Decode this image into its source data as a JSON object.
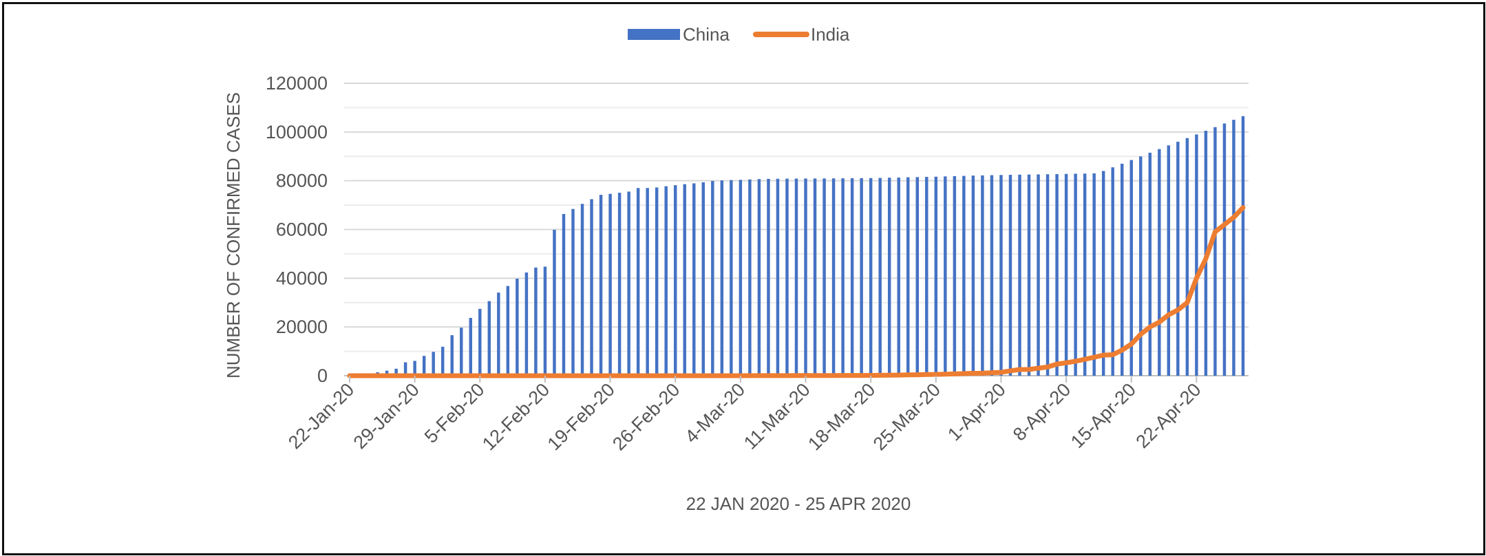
{
  "chart_data": {
    "type": "bar+line",
    "xlabel": "22 JAN 2020 - 25 APR 2020",
    "ylabel": "NUMBER OF CONFIRMED CASES",
    "ylim": [
      0,
      120000
    ],
    "yticks": [
      0,
      20000,
      40000,
      60000,
      80000,
      100000,
      120000
    ],
    "xticks": [
      "22-Jan-20",
      "29-Jan-20",
      "5-Feb-20",
      "12-Feb-20",
      "19-Feb-20",
      "26-Feb-20",
      "4-Mar-20",
      "11-Mar-20",
      "18-Mar-20",
      "25-Mar-20",
      "1-Apr-20",
      "8-Apr-20",
      "15-Apr-20",
      "22-Apr-20"
    ],
    "grid": "horizontal",
    "legend_position": "top-center",
    "x_start": "2020-01-22",
    "x_end": "2020-04-25",
    "series": [
      {
        "name": "China",
        "type": "bar",
        "color": "#4472C4",
        "values": [
          548,
          643,
          920,
          1406,
          2075,
          2877,
          5509,
          6087,
          8141,
          9802,
          11891,
          16630,
          19716,
          23707,
          27440,
          30587,
          34110,
          36814,
          39829,
          42354,
          44386,
          44759,
          59895,
          66358,
          68413,
          70513,
          72434,
          74211,
          74619,
          75077,
          75550,
          77001,
          77022,
          77241,
          77754,
          78166,
          78600,
          78928,
          79356,
          79932,
          80136,
          80261,
          80386,
          80537,
          80690,
          80770,
          80823,
          80860,
          80887,
          80921,
          80932,
          80945,
          80977,
          81003,
          81033,
          81058,
          81102,
          81156,
          81250,
          81305,
          81435,
          81498,
          81591,
          81661,
          81782,
          81897,
          81999,
          82122,
          82198,
          82279,
          82361,
          82432,
          82511,
          82543,
          82602,
          82665,
          82718,
          82809,
          82883,
          82941,
          83014,
          84000,
          85500,
          87000,
          88500,
          90000,
          91500,
          93000,
          94500,
          96000,
          97500,
          99000,
          100500,
          102000,
          103500,
          105000,
          106500
        ]
      },
      {
        "name": "India",
        "type": "line",
        "color": "#ED7D31",
        "values": [
          0,
          0,
          0,
          0,
          0,
          0,
          0,
          0,
          1,
          1,
          1,
          2,
          3,
          3,
          3,
          3,
          3,
          3,
          3,
          3,
          3,
          3,
          3,
          3,
          3,
          3,
          3,
          3,
          3,
          3,
          3,
          3,
          3,
          3,
          3,
          3,
          3,
          3,
          3,
          3,
          3,
          5,
          6,
          28,
          30,
          31,
          34,
          39,
          43,
          56,
          62,
          73,
          82,
          102,
          113,
          119,
          142,
          156,
          194,
          244,
          330,
          396,
          499,
          536,
          657,
          727,
          887,
          987,
          1024,
          1251,
          1397,
          1998,
          2543,
          2567,
          3082,
          3588,
          4778,
          5311,
          5916,
          6725,
          7598,
          8446,
          8600,
          10500,
          13000,
          17000,
          20000,
          22000,
          25000,
          27000,
          30000,
          40000,
          48000,
          59000,
          62000,
          65000,
          69000
        ]
      }
    ]
  }
}
